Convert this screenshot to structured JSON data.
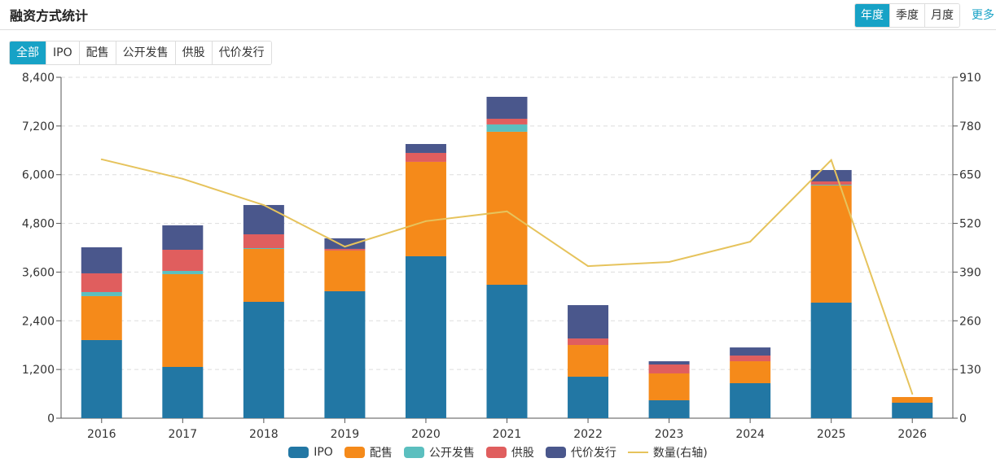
{
  "header": {
    "title": "融资方式统计",
    "period_tabs": [
      {
        "label": "年度",
        "active": true
      },
      {
        "label": "季度",
        "active": false
      },
      {
        "label": "月度",
        "active": false
      }
    ],
    "more_label": "更多"
  },
  "type_tabs": [
    {
      "label": "全部",
      "active": true
    },
    {
      "label": "IPO",
      "active": false
    },
    {
      "label": "配售",
      "active": false
    },
    {
      "label": "公开发售",
      "active": false
    },
    {
      "label": "供股",
      "active": false
    },
    {
      "label": "代价发行",
      "active": false
    }
  ],
  "colors": {
    "IPO": "#2277a4",
    "配售": "#f58a1a",
    "公开发售": "#5bbfbf",
    "供股": "#e05e5e",
    "代价发行": "#4a578c",
    "数量(右轴)": "#e6c35c",
    "accent": "#17a2c6"
  },
  "chart_data": {
    "type": "bar",
    "stacked": true,
    "title": "融资方式统计",
    "categories": [
      "2016",
      "2017",
      "2018",
      "2019",
      "2020",
      "2021",
      "2022",
      "2023",
      "2024",
      "2025",
      "2026"
    ],
    "series": [
      {
        "name": "IPO",
        "type": "bar",
        "values": [
          1925,
          1263,
          2867,
          3128,
          3990,
          3288,
          1022,
          441,
          862,
          2847,
          381
        ]
      },
      {
        "name": "配售",
        "type": "bar",
        "values": [
          1083,
          2286,
          1303,
          1003,
          2326,
          3770,
          782,
          662,
          541,
          2887,
          140
        ]
      },
      {
        "name": "公开发售",
        "type": "bar",
        "values": [
          100,
          80,
          20,
          0,
          0,
          180,
          0,
          0,
          0,
          20,
          0
        ]
      },
      {
        "name": "供股",
        "type": "bar",
        "values": [
          461,
          521,
          341,
          40,
          220,
          140,
          160,
          220,
          140,
          80,
          0
        ]
      },
      {
        "name": "代价发行",
        "type": "bar",
        "values": [
          642,
          602,
          722,
          261,
          220,
          541,
          822,
          80,
          200,
          281,
          0
        ]
      },
      {
        "name": "数量(右轴)",
        "type": "line",
        "axis": "right",
        "values": [
          691,
          639,
          569,
          458,
          526,
          552,
          406,
          417,
          471,
          689,
          65
        ]
      }
    ],
    "left_axis": {
      "ylim": [
        0,
        8400
      ],
      "ticks": [
        "0",
        "1,200",
        "2,400",
        "3,600",
        "4,800",
        "6,000",
        "7,200",
        "8,400"
      ]
    },
    "right_axis": {
      "ylim": [
        0,
        910
      ],
      "ticks": [
        "0",
        "130",
        "260",
        "390",
        "520",
        "650",
        "780",
        "910"
      ]
    },
    "grid": true,
    "legend_position": "bottom"
  }
}
